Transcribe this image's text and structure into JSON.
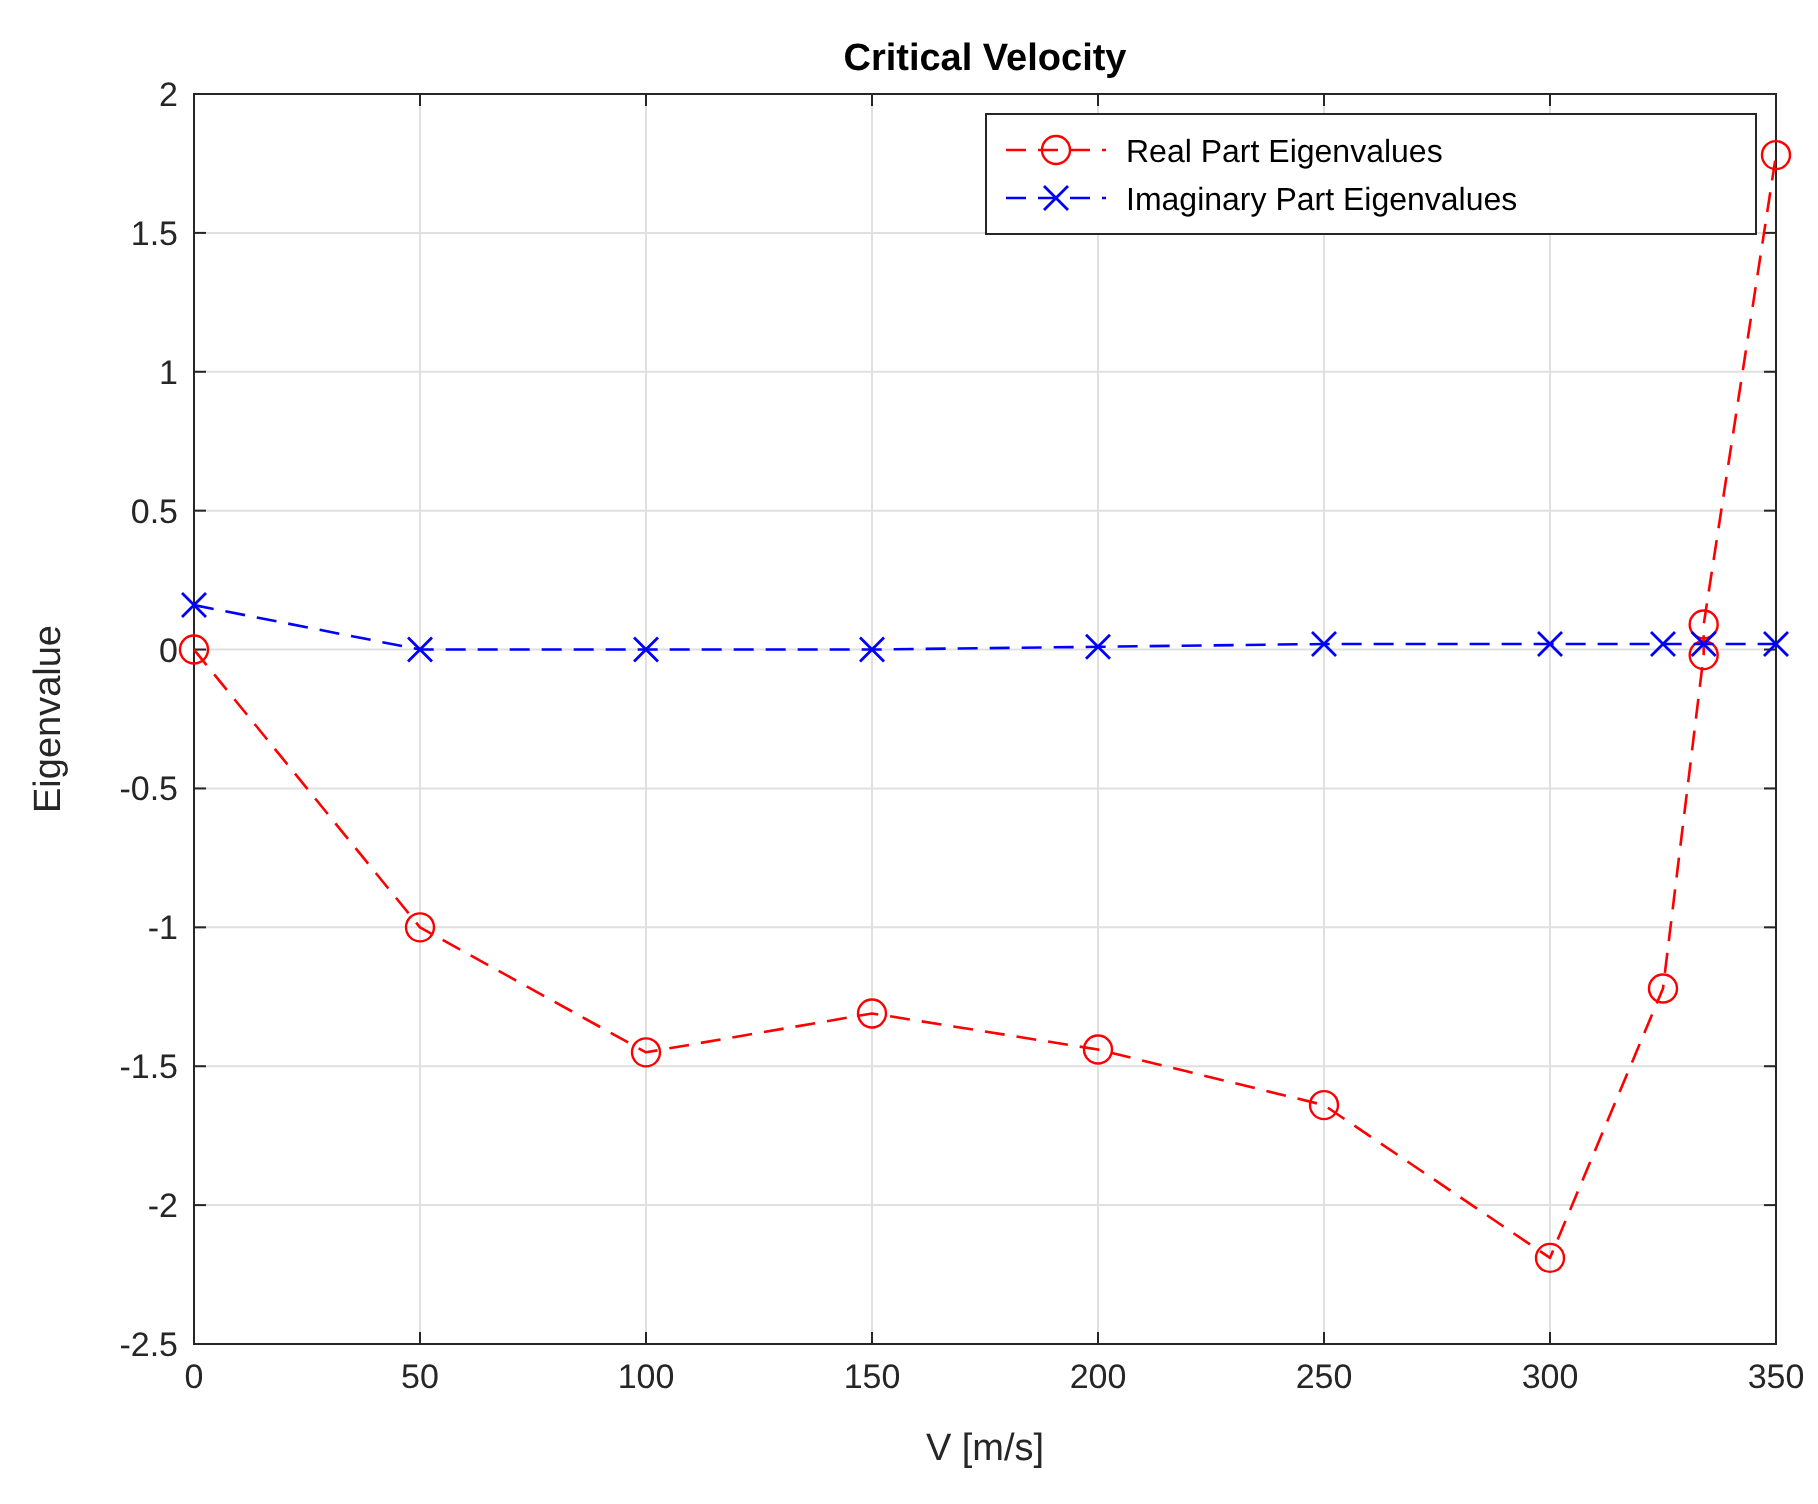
{
  "chart_data": {
    "type": "line",
    "title": "Critical Velocity",
    "xlabel": "V [m/s]",
    "ylabel": "Eigenvalue",
    "series": [
      {
        "name": "Real Part Eigenvalues",
        "color": "#ff0000",
        "marker": "circle",
        "line_style": "dashed",
        "x": [
          0,
          50,
          100,
          150,
          200,
          250,
          300,
          325,
          334,
          334,
          350
        ],
        "values": [
          0,
          -1,
          -1.45,
          -1.31,
          -1.44,
          -1.64,
          -2.19,
          -1.22,
          -0.02,
          0.09,
          1.78
        ]
      },
      {
        "name": "Imaginary Part Eigenvalues",
        "color": "#0000ff",
        "marker": "cross",
        "line_style": "dashed",
        "x": [
          0,
          50,
          100,
          150,
          200,
          250,
          300,
          325,
          334,
          350
        ],
        "values": [
          0.16,
          0,
          0,
          0,
          0.01,
          0.02,
          0.02,
          0.02,
          0.02,
          0.02
        ]
      }
    ],
    "xlim": [
      0,
      350
    ],
    "xticks": [
      0,
      50,
      100,
      150,
      200,
      250,
      300,
      350
    ],
    "ylim": [
      -2.5,
      2
    ],
    "yticks": [
      -2.5,
      -2,
      -1.5,
      -1,
      -0.5,
      0,
      0.5,
      1,
      1.5,
      2
    ],
    "grid": true,
    "legend": "top right"
  }
}
